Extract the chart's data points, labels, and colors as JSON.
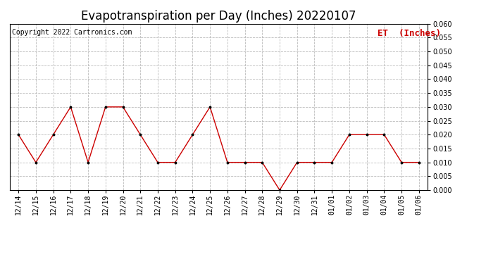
{
  "title": "Evapotranspiration per Day (Inches) 20220107",
  "copyright": "Copyright 2022 Cartronics.com",
  "legend_label": "ET  (Inches)",
  "x_labels": [
    "12/14",
    "12/15",
    "12/16",
    "12/17",
    "12/18",
    "12/19",
    "12/20",
    "12/21",
    "12/22",
    "12/23",
    "12/24",
    "12/25",
    "12/26",
    "12/27",
    "12/28",
    "12/29",
    "12/30",
    "12/31",
    "01/01",
    "01/02",
    "01/03",
    "01/04",
    "01/05",
    "01/06"
  ],
  "y_values": [
    0.02,
    0.01,
    0.02,
    0.03,
    0.01,
    0.03,
    0.03,
    0.02,
    0.01,
    0.01,
    0.02,
    0.03,
    0.01,
    0.01,
    0.01,
    0.0,
    0.01,
    0.01,
    0.01,
    0.02,
    0.02,
    0.02,
    0.01,
    0.01
  ],
  "line_color": "#cc0000",
  "marker_color": "#000000",
  "ylim": [
    0.0,
    0.06
  ],
  "yticks": [
    0.0,
    0.005,
    0.01,
    0.015,
    0.02,
    0.025,
    0.03,
    0.035,
    0.04,
    0.045,
    0.05,
    0.055,
    0.06
  ],
  "grid_color": "#bbbbbb",
  "bg_color": "#ffffff",
  "title_fontsize": 12,
  "copyright_fontsize": 7,
  "legend_fontsize": 9,
  "tick_fontsize": 7
}
